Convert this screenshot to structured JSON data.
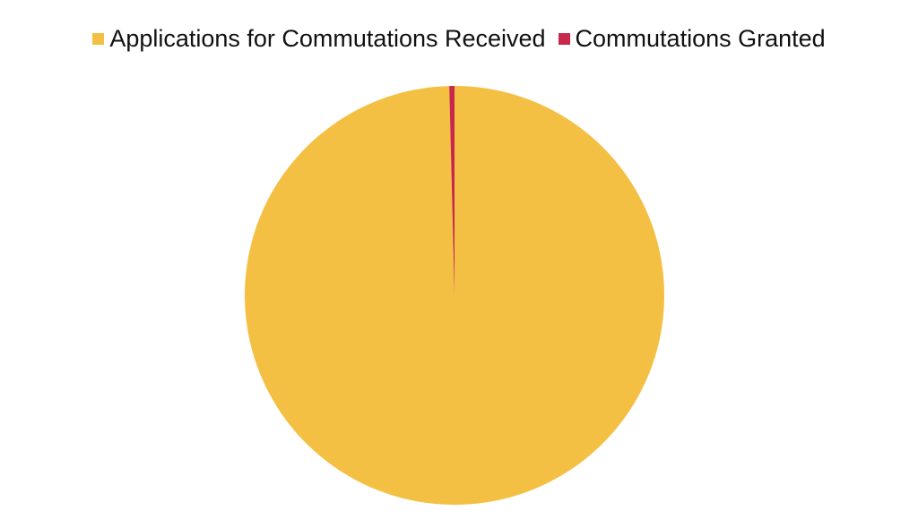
{
  "chart_data": {
    "type": "pie",
    "title": "",
    "legend_position": "top",
    "slices": [
      {
        "label": "Applications for Commutations Received",
        "value": 99.6,
        "color": "#F4C044"
      },
      {
        "label": "Commutations Granted",
        "value": 0.4,
        "color": "#C8294B"
      }
    ]
  }
}
